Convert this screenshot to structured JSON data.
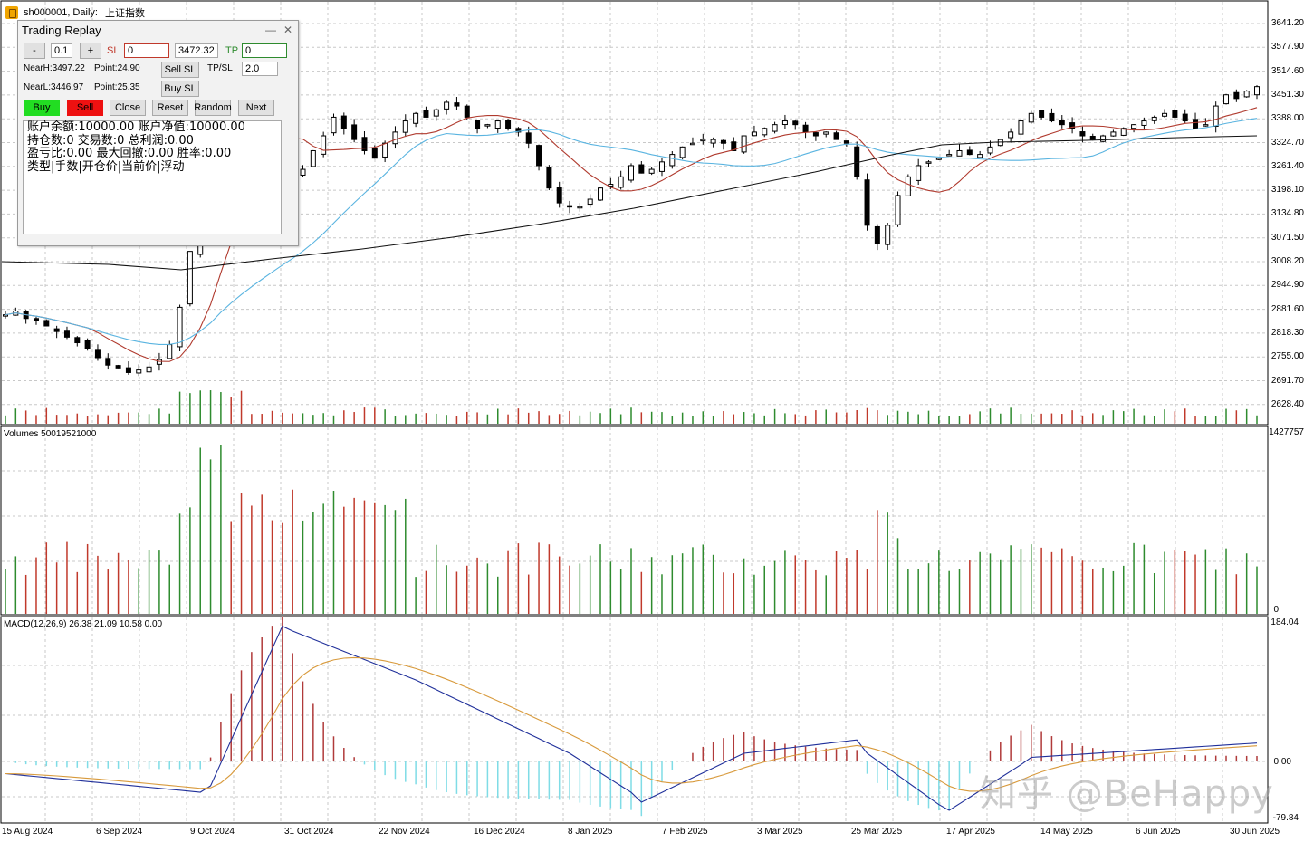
{
  "window": {
    "symbol": "sh000001, Daily:",
    "name_cn": "上证指数"
  },
  "price_axis": [
    "3641.20",
    "3577.90",
    "3514.60",
    "3451.30",
    "3388.00",
    "3324.70",
    "3261.40",
    "3198.10",
    "3134.80",
    "3071.50",
    "3008.20",
    "2944.90",
    "2881.60",
    "2818.30",
    "2755.00",
    "2691.70",
    "2628.40"
  ],
  "volume_axis": {
    "top": "1427757",
    "bottom": "0"
  },
  "macd_axis": {
    "top": "184.04",
    "zero": "0.00",
    "bottom": "-79.84"
  },
  "date_axis": [
    "15 Aug 2024",
    "6 Sep 2024",
    "9 Oct 2024",
    "31 Oct 2024",
    "22 Nov 2024",
    "16 Dec 2024",
    "8 Jan 2025",
    "7 Feb 2025",
    "3 Mar 2025",
    "25 Mar 2025",
    "17 Apr 2025",
    "14 May 2025",
    "6 Jun 2025",
    "30 Jun 2025"
  ],
  "volumes_label": "Volumes 50019521000",
  "macd_label": "MACD(12,26,9) 26.38 21.09 10.58 0.00",
  "colors": {
    "up": "#2e8b2e",
    "down": "#c0392b",
    "ma_short": "#b03a2e",
    "ma_mid": "#5ab4e0",
    "ma_long": "#111111",
    "macd_line": "#1f2f9a",
    "signal_line": "#d89a3c",
    "hist_pos": "#b03a3a",
    "hist_neg": "#7fdce6"
  },
  "panel": {
    "title": "Trading Replay",
    "minus": "-",
    "lot": "0.1",
    "plus": "+",
    "sl_label": "SL",
    "sl_value": "0",
    "price": "3472.32",
    "tp_label": "TP",
    "tp_value": "0",
    "nearh": "NearH:3497.22",
    "point1": "Point:24.90",
    "sell_sl": "Sell SL",
    "tpsl_label": "TP/SL",
    "tpsl_value": "2.0",
    "nearl": "NearL:3446.97",
    "point2": "Point:25.35",
    "buy_sl": "Buy SL",
    "buy": "Buy",
    "sell": "Sell",
    "close": "Close",
    "reset": "Reset",
    "random": "Random",
    "next": "Next",
    "info": [
      "账户余额:10000.00  账户净值:10000.00",
      "持仓数:0 交易数:0 总利润:0.00",
      "盈亏比:0.00 最大回撤:0.00 胜率:0.00",
      "类型|手数|开仓价|当前价|浮动"
    ]
  },
  "watermark": "知乎 @BeHappy",
  "chart_data": {
    "type": "candlestick",
    "title": "sh000001, Daily",
    "x_range": [
      "15 Aug 2024",
      "30 Jun 2025"
    ],
    "y_range": [
      2628.4,
      3641.2
    ],
    "close_series": [
      2860,
      2870,
      2850,
      2845,
      2830,
      2815,
      2800,
      2785,
      2770,
      2745,
      2725,
      2715,
      2705,
      2712,
      2720,
      2740,
      2780,
      2880,
      3030,
      3150,
      3270,
      3470,
      3440,
      3380,
      3350,
      3310,
      3290,
      3260,
      3230,
      3250,
      3300,
      3340,
      3390,
      3360,
      3330,
      3300,
      3280,
      3320,
      3350,
      3380,
      3400,
      3390,
      3410,
      3430,
      3420,
      3390,
      3360,
      3370,
      3380,
      3360,
      3350,
      3320,
      3260,
      3200,
      3160,
      3150,
      3150,
      3170,
      3200,
      3210,
      3230,
      3260,
      3240,
      3250,
      3270,
      3290,
      3310,
      3320,
      3330,
      3330,
      3320,
      3300,
      3340,
      3350,
      3360,
      3370,
      3380,
      3370,
      3350,
      3340,
      3350,
      3330,
      3320,
      3230,
      3100,
      3050,
      3100,
      3180,
      3230,
      3260,
      3270,
      3280,
      3290,
      3300,
      3290,
      3290,
      3310,
      3330,
      3350,
      3380,
      3400,
      3390,
      3380,
      3370,
      3360,
      3340,
      3330,
      3340,
      3350,
      3360,
      3370,
      3380,
      3390,
      3400,
      3390,
      3380,
      3360,
      3370,
      3420,
      3450,
      3440,
      3460,
      3472
    ]
  }
}
